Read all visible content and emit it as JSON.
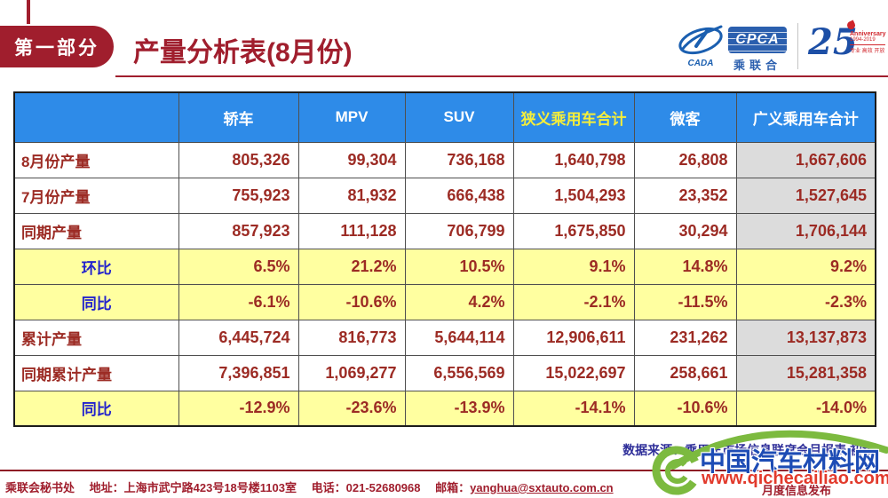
{
  "header": {
    "section_badge": "第一部分",
    "title": "产量分析表(8月份)",
    "logo": {
      "emblem_text": "CADA",
      "cpca_text": "CPCA",
      "cpca_sub": "乘联合",
      "anniversary_number": "25",
      "anniversary_label": "Anniversary",
      "anniversary_years": "1994-2019",
      "anniversary_tagline": "专业 高效 开放"
    }
  },
  "table": {
    "columns": [
      "",
      "轿车",
      "MPV",
      "SUV",
      "狭义乘用车合计",
      "微客",
      "广义乘用车合计"
    ],
    "rows": [
      {
        "label": "8月份产量",
        "type": "data",
        "values": [
          "805,326",
          "99,304",
          "736,168",
          "1,640,798",
          "26,808",
          "1,667,606"
        ]
      },
      {
        "label": "7月份产量",
        "type": "data",
        "values": [
          "755,923",
          "81,932",
          "666,438",
          "1,504,293",
          "23,352",
          "1,527,645"
        ]
      },
      {
        "label": "同期产量",
        "type": "data",
        "values": [
          "857,923",
          "111,128",
          "706,799",
          "1,675,850",
          "30,294",
          "1,706,144"
        ]
      },
      {
        "label": "环比",
        "type": "percent",
        "values": [
          "6.5%",
          "21.2%",
          "10.5%",
          "9.1%",
          "14.8%",
          "9.2%"
        ]
      },
      {
        "label": "同比",
        "type": "percent",
        "values": [
          "-6.1%",
          "-10.6%",
          "4.2%",
          "-2.1%",
          "-11.5%",
          "-2.3%"
        ]
      },
      {
        "label": "累计产量",
        "type": "data",
        "values": [
          "6,445,724",
          "816,773",
          "5,644,114",
          "12,906,611",
          "231,262",
          "13,137,873"
        ]
      },
      {
        "label": "同期累计产量",
        "type": "data",
        "values": [
          "7,396,851",
          "1,069,277",
          "6,556,569",
          "15,022,697",
          "258,661",
          "15,281,358"
        ]
      },
      {
        "label": "同比",
        "type": "percent",
        "values": [
          "-12.9%",
          "-23.6%",
          "-13.9%",
          "-14.1%",
          "-10.6%",
          "-14.0%"
        ]
      }
    ]
  },
  "notes": {
    "data_source": "数据来源：乘用车市场信息联席会月报表 初稿",
    "monthly_release": "月度信息发布"
  },
  "footer": {
    "secretariat": "乘联会秘书处",
    "address": "地址：上海市武宁路423号18号楼1103室",
    "phone": "电话：021-52680968",
    "email_label": "邮箱：",
    "email": "yanghua@sxtauto.com.cn"
  },
  "watermark": {
    "site_name": "中国汽车材料网",
    "site_url": "www.qichecailiao.com"
  },
  "colors": {
    "header_blue": "#2e8be8",
    "highlight_yellow": "#ffffa0",
    "total_grey": "#dcdcdc",
    "dark_red": "#9c2b24",
    "label_blue": "#2323cc",
    "brand_red": "#a01e2d",
    "watermark_green": "#7cba3f",
    "watermark_blue": "#1d4cb5",
    "watermark_red": "#e23a2c",
    "note_blue": "#2e2e99"
  }
}
